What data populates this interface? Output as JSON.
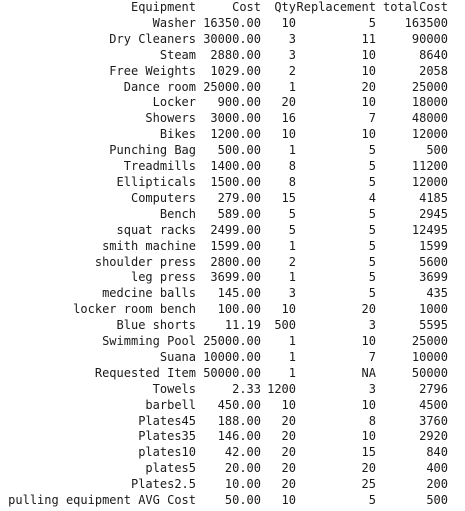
{
  "table": {
    "headers": {
      "equipment": "Equipment",
      "cost": "Cost",
      "qty": "Qty",
      "replacement": "Replacement",
      "total_cost": "totalCost"
    },
    "rows": [
      {
        "equipment": "Washer",
        "cost": "16350.00",
        "qty": "10",
        "replacement": "5",
        "total_cost": "163500"
      },
      {
        "equipment": "Dry Cleaners",
        "cost": "30000.00",
        "qty": "3",
        "replacement": "11",
        "total_cost": "90000"
      },
      {
        "equipment": "Steam",
        "cost": "2880.00",
        "qty": "3",
        "replacement": "10",
        "total_cost": "8640"
      },
      {
        "equipment": "Free Weights",
        "cost": "1029.00",
        "qty": "2",
        "replacement": "10",
        "total_cost": "2058"
      },
      {
        "equipment": "Dance room",
        "cost": "25000.00",
        "qty": "1",
        "replacement": "20",
        "total_cost": "25000"
      },
      {
        "equipment": "Locker",
        "cost": "900.00",
        "qty": "20",
        "replacement": "10",
        "total_cost": "18000"
      },
      {
        "equipment": "Showers",
        "cost": "3000.00",
        "qty": "16",
        "replacement": "7",
        "total_cost": "48000"
      },
      {
        "equipment": "Bikes",
        "cost": "1200.00",
        "qty": "10",
        "replacement": "10",
        "total_cost": "12000"
      },
      {
        "equipment": "Punching Bag",
        "cost": "500.00",
        "qty": "1",
        "replacement": "5",
        "total_cost": "500"
      },
      {
        "equipment": "Treadmills",
        "cost": "1400.00",
        "qty": "8",
        "replacement": "5",
        "total_cost": "11200"
      },
      {
        "equipment": "Ellipticals",
        "cost": "1500.00",
        "qty": "8",
        "replacement": "5",
        "total_cost": "12000"
      },
      {
        "equipment": "Computers",
        "cost": "279.00",
        "qty": "15",
        "replacement": "4",
        "total_cost": "4185"
      },
      {
        "equipment": "Bench",
        "cost": "589.00",
        "qty": "5",
        "replacement": "5",
        "total_cost": "2945"
      },
      {
        "equipment": "squat racks",
        "cost": "2499.00",
        "qty": "5",
        "replacement": "5",
        "total_cost": "12495"
      },
      {
        "equipment": "smith machine",
        "cost": "1599.00",
        "qty": "1",
        "replacement": "5",
        "total_cost": "1599"
      },
      {
        "equipment": "shoulder press",
        "cost": "2800.00",
        "qty": "2",
        "replacement": "5",
        "total_cost": "5600"
      },
      {
        "equipment": "leg press",
        "cost": "3699.00",
        "qty": "1",
        "replacement": "5",
        "total_cost": "3699"
      },
      {
        "equipment": "medcine balls",
        "cost": "145.00",
        "qty": "3",
        "replacement": "5",
        "total_cost": "435"
      },
      {
        "equipment": "locker room bench",
        "cost": "100.00",
        "qty": "10",
        "replacement": "20",
        "total_cost": "1000"
      },
      {
        "equipment": "Blue shorts",
        "cost": "11.19",
        "qty": "500",
        "replacement": "3",
        "total_cost": "5595"
      },
      {
        "equipment": "Swimming Pool",
        "cost": "25000.00",
        "qty": "1",
        "replacement": "10",
        "total_cost": "25000"
      },
      {
        "equipment": "Suana",
        "cost": "10000.00",
        "qty": "1",
        "replacement": "7",
        "total_cost": "10000"
      },
      {
        "equipment": "Requested Item",
        "cost": "50000.00",
        "qty": "1",
        "replacement": "NA",
        "total_cost": "50000"
      },
      {
        "equipment": "Towels",
        "cost": "2.33",
        "qty": "1200",
        "replacement": "3",
        "total_cost": "2796"
      },
      {
        "equipment": "barbell",
        "cost": "450.00",
        "qty": "10",
        "replacement": "10",
        "total_cost": "4500"
      },
      {
        "equipment": "Plates45",
        "cost": "188.00",
        "qty": "20",
        "replacement": "8",
        "total_cost": "3760"
      },
      {
        "equipment": "Plates35",
        "cost": "146.00",
        "qty": "20",
        "replacement": "10",
        "total_cost": "2920"
      },
      {
        "equipment": "plates10",
        "cost": "42.00",
        "qty": "20",
        "replacement": "15",
        "total_cost": "840"
      },
      {
        "equipment": "plates5",
        "cost": "20.00",
        "qty": "20",
        "replacement": "20",
        "total_cost": "400"
      },
      {
        "equipment": "Plates2.5",
        "cost": "10.00",
        "qty": "20",
        "replacement": "25",
        "total_cost": "200"
      },
      {
        "equipment": "pulling equipment AVG Cost",
        "cost": "50.00",
        "qty": "10",
        "replacement": "5",
        "total_cost": "500"
      }
    ]
  }
}
